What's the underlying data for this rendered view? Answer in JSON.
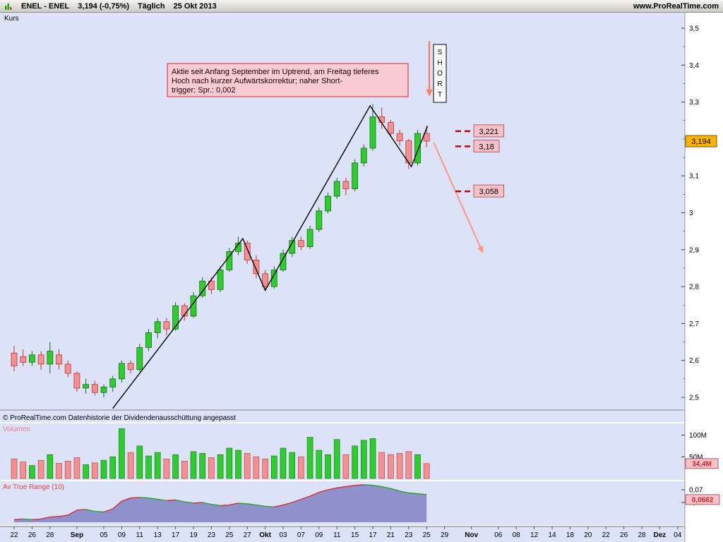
{
  "topbar": {
    "symbol": "ENEL - ENEL",
    "price": "3,194 (-0,75%)",
    "timeframe": "Täglich",
    "date": "25 Okt 2013",
    "site": "www.ProRealTime.com"
  },
  "main_chart": {
    "label": "Kurs",
    "copyright": "© ProRealTime.com  Datenhistorie der Dividendenausschüttung angepasst",
    "annotation_lines": [
      "Aktie seit Anfang September im Uptrend, am Freitag tieferes",
      "Hoch nach kurzer Aufwärtskorrektur; naher Short-",
      "trigger; Spr.: 0,002"
    ],
    "short_label": "SHORT",
    "price_badge": "3,194"
  },
  "x_axis": {
    "ticks": [
      {
        "label": "22",
        "day": 0,
        "bold": false
      },
      {
        "label": "26",
        "day": 2,
        "bold": false
      },
      {
        "label": "28",
        "day": 4,
        "bold": false
      },
      {
        "label": "Sep",
        "day": 7,
        "bold": true
      },
      {
        "label": "05",
        "day": 10,
        "bold": false
      },
      {
        "label": "09",
        "day": 12,
        "bold": false
      },
      {
        "label": "11",
        "day": 14,
        "bold": false
      },
      {
        "label": "13",
        "day": 16,
        "bold": false
      },
      {
        "label": "17",
        "day": 18,
        "bold": false
      },
      {
        "label": "19",
        "day": 20,
        "bold": false
      },
      {
        "label": "23",
        "day": 22,
        "bold": false
      },
      {
        "label": "25",
        "day": 24,
        "bold": false
      },
      {
        "label": "27",
        "day": 26,
        "bold": false
      },
      {
        "label": "Okt",
        "day": 28,
        "bold": true
      },
      {
        "label": "03",
        "day": 30,
        "bold": false
      },
      {
        "label": "07",
        "day": 32,
        "bold": false
      },
      {
        "label": "09",
        "day": 34,
        "bold": false
      },
      {
        "label": "11",
        "day": 36,
        "bold": false
      },
      {
        "label": "15",
        "day": 38,
        "bold": false
      },
      {
        "label": "17",
        "day": 40,
        "bold": false
      },
      {
        "label": "21",
        "day": 42,
        "bold": false
      },
      {
        "label": "23",
        "day": 44,
        "bold": false
      },
      {
        "label": "25",
        "day": 46,
        "bold": false
      },
      {
        "label": "29",
        "day": 48,
        "bold": false
      },
      {
        "label": "Nov",
        "day": 51,
        "bold": true
      },
      {
        "label": "06",
        "day": 54,
        "bold": false
      },
      {
        "label": "08",
        "day": 56,
        "bold": false
      },
      {
        "label": "12",
        "day": 58,
        "bold": false
      },
      {
        "label": "14",
        "day": 60,
        "bold": false
      },
      {
        "label": "18",
        "day": 62,
        "bold": false
      },
      {
        "label": "20",
        "day": 64,
        "bold": false
      },
      {
        "label": "22",
        "day": 66,
        "bold": false
      },
      {
        "label": "26",
        "day": 68,
        "bold": false
      },
      {
        "label": "28",
        "day": 70,
        "bold": false
      },
      {
        "label": "Dez",
        "day": 72,
        "bold": true
      },
      {
        "label": "04",
        "day": 74,
        "bold": false
      }
    ]
  },
  "chart_data": [
    {
      "type": "candlestick",
      "title": "Kurs",
      "ylim": [
        2.47,
        3.53
      ],
      "y_ticks": [
        {
          "label": "3,5",
          "value": 3.5
        },
        {
          "label": "3,4",
          "value": 3.4
        },
        {
          "label": "3,3",
          "value": 3.3
        },
        {
          "label": "3,1",
          "value": 3.1
        },
        {
          "label": "3",
          "value": 3.0
        },
        {
          "label": "2,9",
          "value": 2.9
        },
        {
          "label": "2,8",
          "value": 2.8
        },
        {
          "label": "2,7",
          "value": 2.7
        },
        {
          "label": "2,6",
          "value": 2.6
        },
        {
          "label": "2,5",
          "value": 2.5
        }
      ],
      "last_price": 3.194,
      "levels": [
        {
          "label": "3,221",
          "value": 3.221
        },
        {
          "label": "3,18",
          "value": 3.18
        },
        {
          "label": "3,058",
          "value": 3.058
        }
      ],
      "trendline": [
        [
          11,
          2.47
        ],
        [
          25.5,
          2.93
        ],
        [
          28,
          2.79
        ],
        [
          39.7,
          3.29
        ],
        [
          44.3,
          3.125
        ],
        [
          46.1,
          3.235
        ]
      ],
      "projection": {
        "from": [
          46.8,
          3.19
        ],
        "to": [
          52.3,
          2.89
        ]
      },
      "short_arrow": {
        "day": 46.3,
        "from_price": 3.465,
        "to_price": 3.315
      },
      "candles": [
        [
          0,
          2.62,
          2.64,
          2.57,
          2.585
        ],
        [
          1,
          2.61,
          2.63,
          2.585,
          2.595
        ],
        [
          2,
          2.595,
          2.625,
          2.585,
          2.615
        ],
        [
          3,
          2.615,
          2.625,
          2.575,
          2.59
        ],
        [
          4,
          2.59,
          2.65,
          2.565,
          2.625
        ],
        [
          5,
          2.615,
          2.63,
          2.575,
          2.59
        ],
        [
          6,
          2.59,
          2.6,
          2.555,
          2.565
        ],
        [
          7,
          2.565,
          2.57,
          2.515,
          2.525
        ],
        [
          8,
          2.525,
          2.55,
          2.51,
          2.535
        ],
        [
          9,
          2.535,
          2.545,
          2.505,
          2.513
        ],
        [
          10,
          2.513,
          2.535,
          2.5,
          2.528
        ],
        [
          11,
          2.528,
          2.558,
          2.515,
          2.55
        ],
        [
          12,
          2.55,
          2.6,
          2.54,
          2.592
        ],
        [
          13,
          2.592,
          2.6,
          2.565,
          2.575
        ],
        [
          14,
          2.575,
          2.645,
          2.57,
          2.635
        ],
        [
          15,
          2.635,
          2.685,
          2.625,
          2.675
        ],
        [
          16,
          2.675,
          2.715,
          2.66,
          2.705
        ],
        [
          17,
          2.705,
          2.715,
          2.668,
          2.685
        ],
        [
          18,
          2.685,
          2.758,
          2.68,
          2.748
        ],
        [
          19,
          2.748,
          2.755,
          2.708,
          2.72
        ],
        [
          20,
          2.72,
          2.785,
          2.715,
          2.775
        ],
        [
          21,
          2.775,
          2.825,
          2.77,
          2.815
        ],
        [
          22,
          2.815,
          2.825,
          2.78,
          2.792
        ],
        [
          23,
          2.792,
          2.855,
          2.785,
          2.845
        ],
        [
          24,
          2.845,
          2.905,
          2.84,
          2.895
        ],
        [
          25,
          2.895,
          2.935,
          2.885,
          2.918
        ],
        [
          26,
          2.918,
          2.925,
          2.862,
          2.872
        ],
        [
          27,
          2.872,
          2.885,
          2.822,
          2.835
        ],
        [
          28,
          2.835,
          2.845,
          2.788,
          2.8
        ],
        [
          29,
          2.8,
          2.855,
          2.795,
          2.845
        ],
        [
          30,
          2.845,
          2.9,
          2.84,
          2.89
        ],
        [
          31,
          2.89,
          2.935,
          2.88,
          2.925
        ],
        [
          32,
          2.925,
          2.935,
          2.898,
          2.908
        ],
        [
          33,
          2.908,
          2.965,
          2.902,
          2.955
        ],
        [
          34,
          2.955,
          3.015,
          2.948,
          3.005
        ],
        [
          35,
          3.005,
          3.055,
          2.998,
          3.045
        ],
        [
          36,
          3.045,
          3.095,
          3.038,
          3.085
        ],
        [
          37,
          3.085,
          3.095,
          3.048,
          3.065
        ],
        [
          38,
          3.065,
          3.145,
          3.058,
          3.135
        ],
        [
          39,
          3.135,
          3.185,
          3.125,
          3.175
        ],
        [
          40,
          3.175,
          3.295,
          3.168,
          3.26
        ],
        [
          41,
          3.26,
          3.285,
          3.228,
          3.245
        ],
        [
          42,
          3.245,
          3.252,
          3.205,
          3.215
        ],
        [
          43,
          3.215,
          3.225,
          3.182,
          3.195
        ],
        [
          44,
          3.195,
          3.2,
          3.118,
          3.135
        ],
        [
          45,
          3.135,
          3.225,
          3.128,
          3.215
        ],
        [
          46,
          3.215,
          3.235,
          3.178,
          3.194
        ]
      ]
    },
    {
      "type": "bar",
      "title": "Volumen",
      "ticks": [
        {
          "label": "100M",
          "value": 100
        },
        {
          "label": "50M",
          "value": 50
        }
      ],
      "last_label": "34,4M",
      "last_value": 34.4,
      "values": [
        45,
        38,
        30,
        42,
        55,
        35,
        40,
        48,
        32,
        36,
        42,
        50,
        115,
        60,
        75,
        52,
        60,
        45,
        55,
        40,
        62,
        58,
        48,
        55,
        70,
        65,
        58,
        50,
        45,
        52,
        70,
        60,
        50,
        95,
        65,
        55,
        90,
        55,
        75,
        88,
        92,
        60,
        55,
        58,
        62,
        55,
        34.4
      ]
    },
    {
      "type": "area",
      "title": "Av True Range (10)",
      "ticks": [
        {
          "label": "0,07",
          "value": 0.07
        },
        {
          "label": "0,06",
          "value": 0.06
        }
      ],
      "last_label": "0,0662",
      "last_value": 0.0662,
      "values": [
        0.0465,
        0.047,
        0.0465,
        0.047,
        0.0485,
        0.049,
        0.05,
        0.054,
        0.0545,
        0.053,
        0.0525,
        0.055,
        0.061,
        0.0635,
        0.064,
        0.0635,
        0.0625,
        0.0615,
        0.062,
        0.0605,
        0.0595,
        0.06,
        0.0585,
        0.0575,
        0.058,
        0.0595,
        0.059,
        0.058,
        0.057,
        0.0565,
        0.058,
        0.06,
        0.0625,
        0.065,
        0.068,
        0.07,
        0.0715,
        0.0725,
        0.0735,
        0.074,
        0.0735,
        0.0725,
        0.071,
        0.069,
        0.0675,
        0.067,
        0.0662
      ]
    }
  ],
  "colors": {
    "pane_bg": "#dce2f8",
    "candle_up": "#2ecc2e",
    "candle_up_border": "#157015",
    "candle_down": "#f29191",
    "candle_down_border": "#c03333",
    "level_dash": "#cc0000",
    "badge_bg": "#f6c2c8",
    "badge_border": "#b85a66",
    "badge_text": "#cc2233",
    "price_badge": "#ffb200",
    "note_bg": "#f8ccd2",
    "note_border": "#cc2929",
    "projection": "#ff9585",
    "short_arrow": "#ff7a5e",
    "atr_fill": "#8a8cc9",
    "atr_up": "#d92b2b",
    "atr_down": "#2ba32b",
    "vol_label": "#e57f93",
    "atr_label": "#e04545"
  }
}
